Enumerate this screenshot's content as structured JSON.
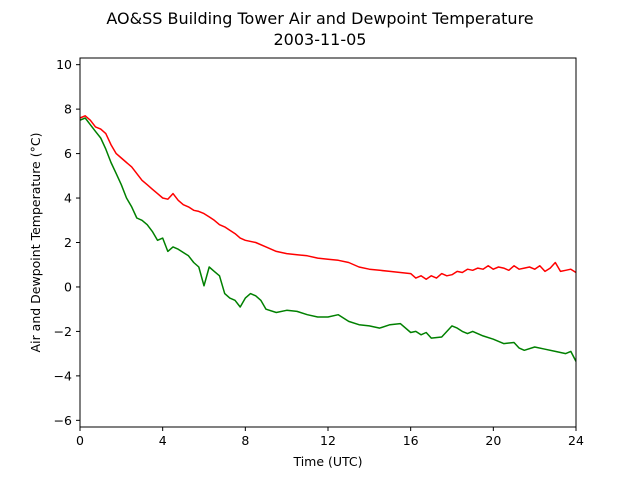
{
  "chart_data": {
    "type": "line",
    "title": "AO&SS Building Tower Air and Dewpoint Temperature",
    "subtitle": "2003-11-05",
    "xlabel": "Time (UTC)",
    "ylabel": "Air and Dewpoint Temperature (°C)",
    "xlim": [
      0,
      24
    ],
    "ylim": [
      -6.3,
      10.3
    ],
    "xticks": [
      0,
      4,
      8,
      12,
      16,
      20,
      24
    ],
    "yticks": [
      -6,
      -4,
      -2,
      0,
      2,
      4,
      6,
      8,
      10
    ],
    "grid": false,
    "legend": "none",
    "series": [
      {
        "color": "#ff0000",
        "x": [
          0,
          0.25,
          0.5,
          0.75,
          1,
          1.25,
          1.5,
          1.75,
          2,
          2.25,
          2.5,
          2.75,
          3,
          3.25,
          3.5,
          3.75,
          4,
          4.25,
          4.5,
          4.75,
          5,
          5.25,
          5.5,
          5.75,
          6,
          6.25,
          6.5,
          6.75,
          7,
          7.25,
          7.5,
          7.75,
          8,
          8.5,
          9,
          9.5,
          10,
          10.5,
          11,
          11.5,
          12,
          12.5,
          13,
          13.5,
          14,
          14.5,
          15,
          15.5,
          16,
          16.25,
          16.5,
          16.75,
          17,
          17.25,
          17.5,
          17.75,
          18,
          18.25,
          18.5,
          18.75,
          19,
          19.25,
          19.5,
          19.75,
          20,
          20.25,
          20.5,
          20.75,
          21,
          21.25,
          21.5,
          21.75,
          22,
          22.25,
          22.5,
          22.75,
          23,
          23.25,
          23.5,
          23.75,
          24
        ],
        "y": [
          7.6,
          7.7,
          7.5,
          7.2,
          7.1,
          6.9,
          6.4,
          6.0,
          5.8,
          5.6,
          5.4,
          5.1,
          4.8,
          4.6,
          4.4,
          4.2,
          4.0,
          3.95,
          4.2,
          3.9,
          3.7,
          3.6,
          3.45,
          3.4,
          3.3,
          3.15,
          3.0,
          2.8,
          2.7,
          2.55,
          2.4,
          2.2,
          2.1,
          2.0,
          1.8,
          1.6,
          1.5,
          1.45,
          1.4,
          1.3,
          1.25,
          1.2,
          1.1,
          0.9,
          0.8,
          0.75,
          0.7,
          0.65,
          0.6,
          0.4,
          0.5,
          0.35,
          0.5,
          0.4,
          0.6,
          0.5,
          0.55,
          0.7,
          0.65,
          0.8,
          0.75,
          0.85,
          0.8,
          0.95,
          0.8,
          0.9,
          0.85,
          0.75,
          0.95,
          0.8,
          0.85,
          0.9,
          0.8,
          0.95,
          0.7,
          0.85,
          1.1,
          0.7,
          0.75,
          0.8,
          0.65
        ]
      },
      {
        "color": "#008000",
        "x": [
          0,
          0.25,
          0.5,
          0.75,
          1,
          1.25,
          1.5,
          1.75,
          2,
          2.25,
          2.5,
          2.75,
          3,
          3.25,
          3.5,
          3.75,
          4,
          4.25,
          4.5,
          4.75,
          5,
          5.25,
          5.5,
          5.75,
          6,
          6.25,
          6.5,
          6.75,
          7,
          7.25,
          7.5,
          7.75,
          8,
          8.25,
          8.5,
          8.75,
          9,
          9.5,
          10,
          10.5,
          11,
          11.5,
          12,
          12.5,
          13,
          13.5,
          14,
          14.5,
          15,
          15.5,
          16,
          16.25,
          16.5,
          16.75,
          17,
          17.5,
          18,
          18.25,
          18.5,
          18.75,
          19,
          19.5,
          20,
          20.5,
          21,
          21.25,
          21.5,
          22,
          22.5,
          23,
          23.5,
          23.75,
          24
        ],
        "y": [
          7.5,
          7.6,
          7.3,
          7.0,
          6.7,
          6.2,
          5.6,
          5.1,
          4.6,
          4.0,
          3.6,
          3.1,
          3.0,
          2.8,
          2.5,
          2.1,
          2.2,
          1.6,
          1.8,
          1.7,
          1.55,
          1.4,
          1.1,
          0.9,
          0.05,
          0.9,
          0.7,
          0.5,
          -0.3,
          -0.5,
          -0.6,
          -0.9,
          -0.5,
          -0.3,
          -0.4,
          -0.6,
          -1.0,
          -1.15,
          -1.05,
          -1.1,
          -1.25,
          -1.35,
          -1.35,
          -1.25,
          -1.55,
          -1.7,
          -1.75,
          -1.85,
          -1.7,
          -1.65,
          -2.05,
          -2.0,
          -2.15,
          -2.05,
          -2.3,
          -2.25,
          -1.75,
          -1.85,
          -2.0,
          -2.1,
          -2.0,
          -2.2,
          -2.35,
          -2.55,
          -2.5,
          -2.75,
          -2.85,
          -2.7,
          -2.8,
          -2.9,
          -3.0,
          -2.9,
          -3.35
        ]
      }
    ]
  }
}
